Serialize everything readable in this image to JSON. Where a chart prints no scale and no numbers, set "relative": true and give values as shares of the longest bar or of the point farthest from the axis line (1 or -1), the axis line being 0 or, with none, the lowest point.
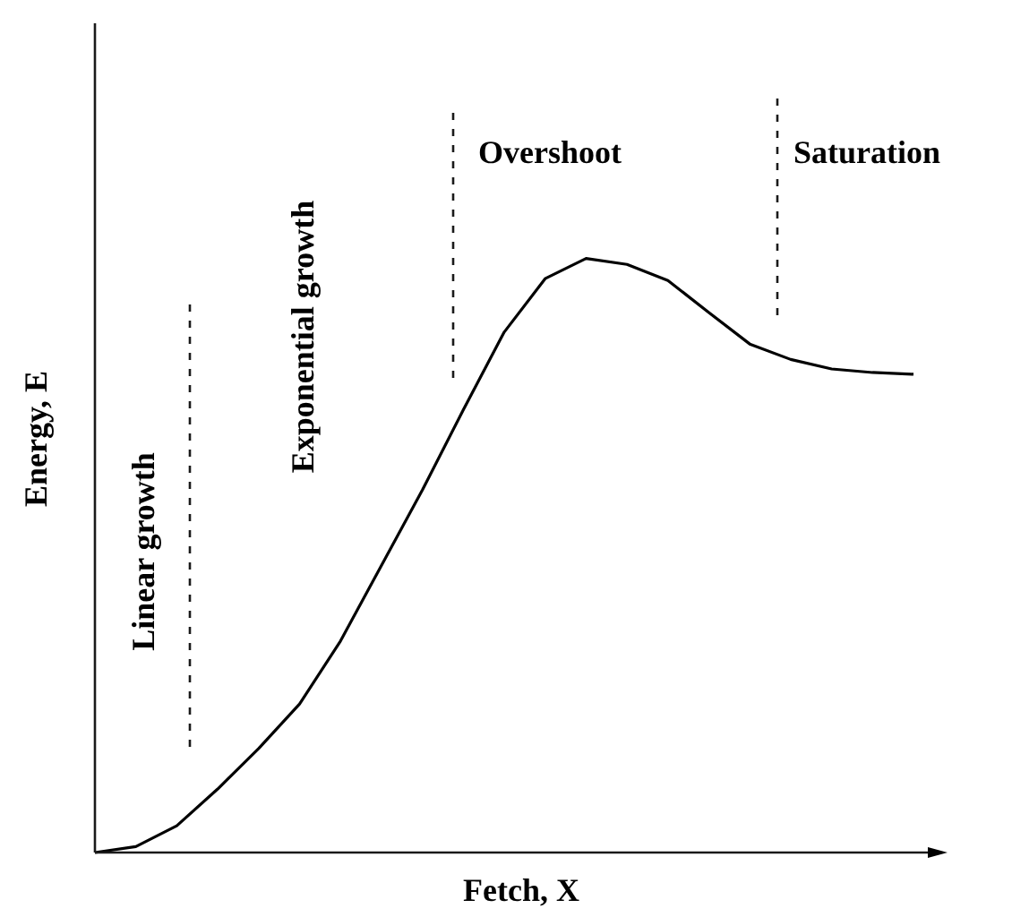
{
  "chart_data": {
    "type": "line",
    "relative": true,
    "xlabel": "Fetch, X",
    "ylabel": "Energy, E",
    "categories": [
      null,
      null,
      null,
      null,
      null,
      null,
      null,
      null,
      null,
      null,
      null,
      null,
      null,
      null,
      null,
      null,
      null,
      null,
      null,
      null,
      null
    ],
    "series": [
      {
        "color": "#000000",
        "values": [
          0,
          0.01,
          0.045,
          0.107,
          0.175,
          0.25,
          0.356,
          0.483,
          0.61,
          0.745,
          0.876,
          0.966,
          1,
          0.99,
          0.963,
          0.909,
          0.856,
          0.83,
          0.814,
          0.808,
          0.805
        ]
      }
    ],
    "annotations": [
      "Linear growth",
      "Exponential growth",
      "Overshoot",
      "Saturation"
    ],
    "grid": false,
    "marker": "none",
    "line_style": "solid"
  }
}
